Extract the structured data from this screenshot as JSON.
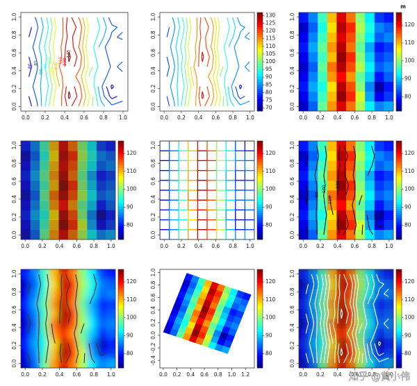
{
  "field": {
    "z": [
      [
        76,
        84,
        98,
        112,
        122,
        114,
        102,
        92,
        86,
        88
      ],
      [
        78,
        86,
        96,
        110,
        126,
        118,
        104,
        88,
        78,
        82
      ],
      [
        80,
        88,
        94,
        108,
        124,
        116,
        100,
        86,
        74,
        80
      ],
      [
        78,
        86,
        96,
        112,
        120,
        112,
        98,
        90,
        80,
        84
      ],
      [
        76,
        84,
        98,
        114,
        124,
        116,
        102,
        92,
        84,
        86
      ],
      [
        78,
        86,
        96,
        110,
        126,
        118,
        100,
        90,
        82,
        84
      ],
      [
        80,
        88,
        98,
        112,
        124,
        114,
        98,
        88,
        80,
        82
      ],
      [
        78,
        86,
        96,
        110,
        122,
        116,
        100,
        92,
        84,
        86
      ],
      [
        76,
        84,
        94,
        108,
        124,
        118,
        102,
        94,
        86,
        84
      ],
      [
        80,
        86,
        96,
        110,
        122,
        114,
        100,
        92,
        82,
        80
      ]
    ]
  },
  "palette": [
    "#00007F",
    "#0000FF",
    "#007FFF",
    "#00FFFF",
    "#7FFF7F",
    "#FFFF00",
    "#FF7F00",
    "#FF0000",
    "#7F0000"
  ],
  "watermark": "知乎 @黄小伟",
  "chart_data": [
    {
      "type": "contour",
      "xlim": [
        -0.05,
        1.05
      ],
      "ylim": [
        -0.05,
        1.05
      ],
      "xticks": [
        {
          "value": 0,
          "label": "0.0"
        },
        0.2,
        0.4,
        0.6,
        0.8,
        {
          "value": 1,
          "label": "1.0"
        }
      ],
      "yticks": [
        {
          "value": 0,
          "label": "0.0"
        },
        0.2,
        0.4,
        0.6,
        0.8,
        {
          "value": 1,
          "label": "1.0"
        }
      ],
      "levels": [
        75,
        80,
        85,
        90,
        95,
        100,
        105,
        110,
        115,
        120,
        125
      ],
      "level_labels": true
    },
    {
      "type": "contour",
      "xlim": [
        -0.05,
        1.05
      ],
      "ylim": [
        -0.05,
        1.05
      ],
      "xticks": [
        {
          "value": 0,
          "label": "0.0"
        },
        0.2,
        0.4,
        0.6,
        0.8,
        {
          "value": 1,
          "label": "1.0"
        }
      ],
      "yticks": [
        {
          "value": 0,
          "label": "0.0"
        },
        0.2,
        0.4,
        0.6,
        0.8,
        {
          "value": 1,
          "label": "1.0"
        }
      ],
      "levels": [
        75,
        80,
        85,
        90,
        95,
        100,
        105,
        110,
        115,
        120,
        125
      ],
      "zlim": [
        68,
        132
      ],
      "zticks": [
        70,
        75,
        80,
        85,
        90,
        95,
        100,
        105,
        110,
        115,
        120,
        125,
        130
      ]
    },
    {
      "type": "heatmap",
      "xlim": [
        -0.05,
        1.05
      ],
      "ylim": [
        -0.05,
        1.05
      ],
      "xticks": [
        {
          "value": 0,
          "label": "0.0"
        },
        0.2,
        0.4,
        0.6,
        0.8,
        {
          "value": 1,
          "label": "1.0"
        }
      ],
      "yticks": [
        {
          "value": 0,
          "label": "0.0"
        },
        0.2,
        0.4,
        0.6,
        0.8,
        {
          "value": 1,
          "label": "1.0"
        }
      ],
      "zlim": [
        72,
        127
      ],
      "zticks": [
        80,
        90,
        100,
        110,
        120
      ],
      "colorbar_title": "m"
    },
    {
      "type": "heatmap",
      "xlim": [
        -0.05,
        1.05
      ],
      "ylim": [
        -0.05,
        1.05
      ],
      "xticks": [
        {
          "value": 0,
          "label": "0.0"
        },
        0.2,
        0.4,
        0.6,
        0.8,
        {
          "value": 1,
          "label": "1.0"
        }
      ],
      "yticks": [
        {
          "value": 0,
          "label": "0.0"
        },
        0.2,
        0.4,
        0.6,
        0.8,
        {
          "value": 1,
          "label": "1.0"
        }
      ],
      "zlim": [
        72,
        127
      ],
      "zticks": [
        80,
        90,
        100,
        110,
        120
      ],
      "opacity": 0.7
    },
    {
      "type": "mesh",
      "xlim": [
        -0.05,
        1.05
      ],
      "ylim": [
        -0.05,
        1.05
      ],
      "xticks": [
        {
          "value": 0,
          "label": "0.0"
        },
        0.2,
        0.4,
        0.6,
        0.8,
        {
          "value": 1,
          "label": "1.0"
        }
      ],
      "yticks": [
        {
          "value": 0,
          "label": "0.0"
        },
        0.2,
        0.4,
        0.6,
        0.8,
        {
          "value": 1,
          "label": "1.0"
        }
      ],
      "zlim": [
        72,
        127
      ],
      "zticks": [
        80,
        90,
        100,
        110,
        120
      ]
    },
    {
      "type": "heatmap-contour",
      "xlim": [
        -0.05,
        1.05
      ],
      "ylim": [
        -0.05,
        1.05
      ],
      "xticks": [
        {
          "value": 0,
          "label": "0.0"
        },
        0.2,
        0.4,
        0.6,
        0.8,
        {
          "value": 1,
          "label": "1.0"
        }
      ],
      "yticks": [
        {
          "value": 0,
          "label": "0.0"
        },
        0.2,
        0.4,
        0.6,
        0.8,
        {
          "value": 1,
          "label": "1.0"
        }
      ],
      "zlim": [
        72,
        127
      ],
      "zticks": [
        80,
        90,
        100,
        110,
        120
      ],
      "levels": [
        80,
        90,
        100,
        110,
        120
      ],
      "level_labels": true,
      "contour_color": "#111111"
    },
    {
      "type": "raster-contour",
      "xlim": [
        -0.05,
        1.05
      ],
      "ylim": [
        -0.05,
        1.05
      ],
      "xticks": [
        {
          "value": 0,
          "label": "0.0"
        },
        0.2,
        0.4,
        0.6,
        0.8,
        {
          "value": 1,
          "label": "1.0"
        }
      ],
      "yticks": [
        {
          "value": 0,
          "label": "0.0"
        },
        0.2,
        0.4,
        0.6,
        0.8,
        {
          "value": 1,
          "label": "1.0"
        }
      ],
      "zlim": [
        72,
        127
      ],
      "zticks": [
        80,
        90,
        100,
        110,
        120
      ],
      "levels": [
        80,
        90,
        100,
        110,
        120
      ],
      "contour_color": "#333333"
    },
    {
      "type": "rotated-heatmap",
      "xlim": [
        -0.05,
        1.33
      ],
      "ylim": [
        -0.52,
        1.05
      ],
      "xticks": [
        {
          "value": 0,
          "label": "0.0"
        },
        0.2,
        0.4,
        0.6,
        0.8,
        {
          "value": 1,
          "label": "1.0"
        },
        1.2
      ],
      "yticks": [
        -0.4,
        -0.2,
        {
          "value": 0,
          "label": "0.0"
        },
        0.2,
        0.4,
        0.6,
        0.8,
        {
          "value": 1,
          "label": "1.0"
        }
      ],
      "zlim": [
        72,
        127
      ],
      "zticks": [
        80,
        90,
        100,
        110,
        120
      ]
    },
    {
      "type": "raster-contour",
      "xlim": [
        -0.05,
        1.05
      ],
      "ylim": [
        -0.05,
        1.05
      ],
      "xticks": [
        {
          "value": 0,
          "label": "0.0"
        },
        0.2,
        0.4,
        0.6,
        0.8,
        {
          "value": 1,
          "label": "1.0"
        }
      ],
      "yticks": [
        {
          "value": 0,
          "label": "0.0"
        },
        0.2,
        0.4,
        0.6,
        0.8,
        {
          "value": 1,
          "label": "1.0"
        }
      ],
      "zlim": [
        72,
        127
      ],
      "zticks": [
        80,
        90,
        100,
        110,
        120
      ],
      "levels": [
        75,
        80,
        85,
        90,
        95,
        100,
        105,
        110,
        115,
        120,
        125
      ],
      "contour_color": "#ffffff",
      "opacity": 0.6
    }
  ]
}
